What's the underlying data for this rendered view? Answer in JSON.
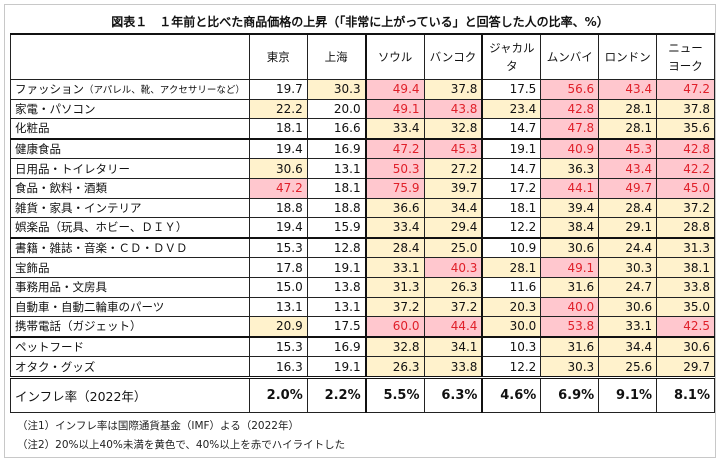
{
  "title": "図表１　１年前と比べた商品価格の上昇（「非常に上がっている」と回答した人の比率、%）",
  "columns": [
    "東京",
    "上海",
    "ソウル",
    "バンコク",
    "ジャカルタ",
    "ムンバイ",
    "ロンドン",
    "ニュー\nヨーク"
  ],
  "rows": [
    {
      "label": "ファッション",
      "label_note": "（アパレル、靴、アクセサリーなど）",
      "values": [
        "19.7",
        "30.3",
        "49.4",
        "37.8",
        "17.5",
        "56.6",
        "43.4",
        "47.2"
      ],
      "hl": [
        "",
        "y",
        "r",
        "y",
        "",
        "r",
        "r",
        "r"
      ]
    },
    {
      "label": "家電・パソコン",
      "values": [
        "22.2",
        "20.0",
        "49.1",
        "43.8",
        "23.4",
        "42.8",
        "28.1",
        "37.8"
      ],
      "hl": [
        "y",
        "",
        "r",
        "r",
        "y",
        "r",
        "y",
        "y"
      ]
    },
    {
      "label": "化粧品",
      "values": [
        "18.1",
        "16.6",
        "33.4",
        "32.8",
        "14.7",
        "47.8",
        "28.1",
        "35.6"
      ],
      "hl": [
        "",
        "",
        "y",
        "y",
        "",
        "r",
        "y",
        "y"
      ]
    },
    {
      "label": "健康食品",
      "values": [
        "19.4",
        "16.9",
        "47.2",
        "45.3",
        "19.1",
        "40.9",
        "45.3",
        "42.8"
      ],
      "hl": [
        "",
        "",
        "r",
        "r",
        "",
        "r",
        "r",
        "r"
      ]
    },
    {
      "label": "日用品・トイレタリー",
      "values": [
        "30.6",
        "13.1",
        "50.3",
        "27.2",
        "14.7",
        "36.3",
        "43.4",
        "42.2"
      ],
      "hl": [
        "y",
        "",
        "r",
        "y",
        "",
        "y",
        "r",
        "r"
      ]
    },
    {
      "label": "食品・飲料・酒類",
      "values": [
        "47.2",
        "18.1",
        "75.9",
        "39.7",
        "17.2",
        "44.1",
        "49.7",
        "45.0"
      ],
      "hl": [
        "r",
        "",
        "r",
        "y",
        "",
        "r",
        "r",
        "r"
      ]
    },
    {
      "label": "雑貨・家具・インテリア",
      "values": [
        "18.8",
        "18.8",
        "36.6",
        "34.4",
        "18.1",
        "39.4",
        "28.4",
        "37.2"
      ],
      "hl": [
        "",
        "",
        "y",
        "y",
        "",
        "y",
        "y",
        "y"
      ]
    },
    {
      "label": "娯楽品（玩具、ホビー、ＤＩＹ）",
      "values": [
        "19.4",
        "15.9",
        "33.4",
        "29.4",
        "12.2",
        "38.4",
        "29.1",
        "28.8"
      ],
      "hl": [
        "",
        "",
        "y",
        "y",
        "",
        "y",
        "y",
        "y"
      ]
    },
    {
      "label": "書籍・雑誌・音楽・ＣＤ・ＤＶＤ",
      "values": [
        "15.3",
        "12.8",
        "28.4",
        "25.0",
        "10.9",
        "30.6",
        "24.4",
        "31.3"
      ],
      "hl": [
        "",
        "",
        "y",
        "y",
        "",
        "y",
        "y",
        "y"
      ]
    },
    {
      "label": "宝飾品",
      "values": [
        "17.8",
        "19.1",
        "33.1",
        "40.3",
        "28.1",
        "49.1",
        "30.3",
        "38.1"
      ],
      "hl": [
        "",
        "",
        "y",
        "r",
        "y",
        "r",
        "y",
        "y"
      ]
    },
    {
      "label": "事務用品・文房具",
      "values": [
        "15.0",
        "13.8",
        "31.3",
        "26.3",
        "11.6",
        "31.6",
        "24.7",
        "33.8"
      ],
      "hl": [
        "",
        "",
        "y",
        "y",
        "",
        "y",
        "y",
        "y"
      ]
    },
    {
      "label": "自動車・自動二輪車のパーツ",
      "values": [
        "13.1",
        "13.1",
        "37.2",
        "37.2",
        "20.3",
        "40.0",
        "30.6",
        "35.0"
      ],
      "hl": [
        "",
        "",
        "y",
        "y",
        "y",
        "r",
        "y",
        "y"
      ]
    },
    {
      "label": "携帯電話（ガジェット）",
      "values": [
        "20.9",
        "17.5",
        "60.0",
        "44.4",
        "30.0",
        "53.8",
        "33.1",
        "42.5"
      ],
      "hl": [
        "y",
        "",
        "r",
        "r",
        "y",
        "r",
        "y",
        "r"
      ]
    },
    {
      "label": "ペットフード",
      "values": [
        "15.3",
        "16.9",
        "32.8",
        "34.1",
        "10.3",
        "31.6",
        "34.4",
        "30.6"
      ],
      "hl": [
        "",
        "",
        "y",
        "y",
        "",
        "y",
        "y",
        "y"
      ]
    },
    {
      "label": "オタク・グッズ",
      "values": [
        "16.3",
        "19.1",
        "26.3",
        "33.8",
        "12.2",
        "30.3",
        "25.6",
        "29.7"
      ],
      "hl": [
        "",
        "",
        "y",
        "y",
        "",
        "y",
        "y",
        "y"
      ]
    }
  ],
  "inflation": {
    "label": "インフレ率（2022年）",
    "values": [
      "2.0%",
      "2.2%",
      "5.5%",
      "6.3%",
      "4.6%",
      "6.9%",
      "9.1%",
      "8.1%"
    ]
  },
  "notes": [
    "（注1）インフレ率は国際通貨基金（IMF）よる（2022年）",
    "（注2）20%以上40%未満を黄色で、40%以上を赤でハイライトした"
  ],
  "colors": {
    "yellow": "#fff2cc",
    "red_fill": "#ffc7ce",
    "red_text": "#e0202a"
  }
}
